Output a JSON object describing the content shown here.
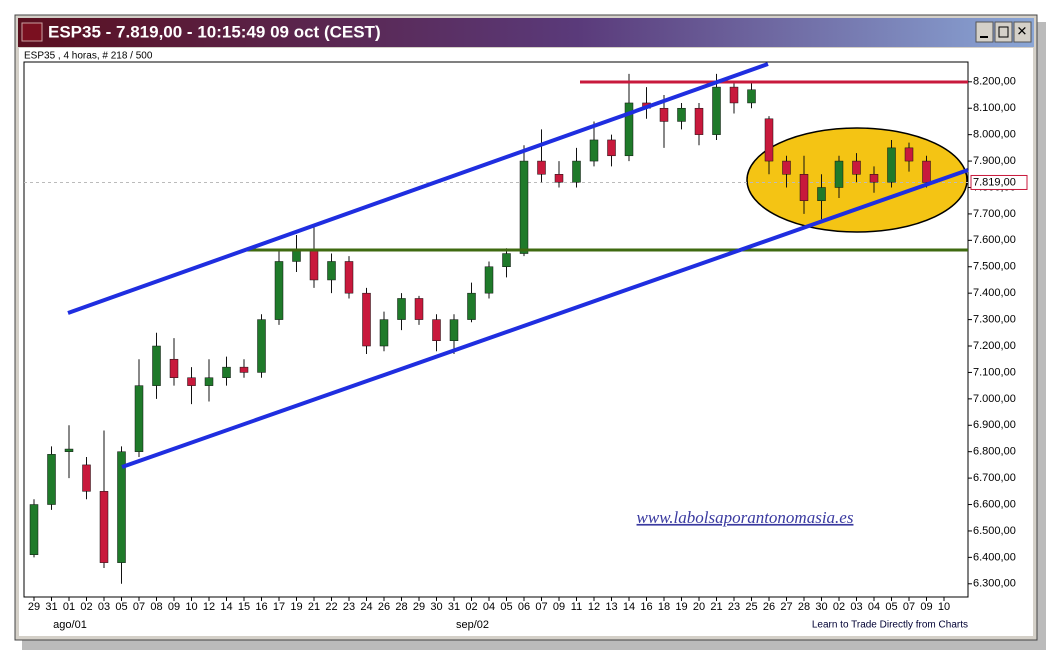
{
  "chart_data": {
    "type": "candlestick",
    "title": "ESP35 - 7.819,00 - 10:15:49  09 oct (CEST)",
    "subtitle": "ESP35 , 4 horas, # 218 / 500",
    "watermark": "www.labolsaporantonomasia.es",
    "footnote": "Learn to Trade Directly from Charts",
    "categories": [
      "29",
      "31",
      "01",
      "02",
      "03",
      "05",
      "07",
      "08",
      "09",
      "10",
      "12",
      "14",
      "15",
      "16",
      "17",
      "19",
      "21",
      "22",
      "23",
      "24",
      "26",
      "28",
      "29",
      "30",
      "31",
      "02",
      "04",
      "05",
      "06",
      "07",
      "09",
      "11",
      "12",
      "13",
      "14",
      "16",
      "18",
      "19",
      "20",
      "21",
      "23",
      "25",
      "26",
      "27",
      "28",
      "30",
      "02",
      "03",
      "04",
      "05",
      "07",
      "09",
      "10"
    ],
    "month_labels": [
      {
        "category": 2,
        "label": "ago/01"
      },
      {
        "category": 25,
        "label": "sep/02"
      }
    ],
    "open": [
      6410,
      6600,
      6800,
      6750,
      6650,
      6380,
      6800,
      7050,
      7150,
      7080,
      7050,
      7080,
      7120,
      7100,
      7300,
      7520,
      7560,
      7450,
      7520,
      7400,
      7200,
      7300,
      7380,
      7300,
      7220,
      7300,
      7400,
      7500,
      7550,
      7900,
      7850,
      7820,
      7900,
      7980,
      7920,
      8120,
      8100,
      8050,
      8100,
      8000,
      8180,
      8120,
      8060,
      7900,
      7850,
      7750,
      7800,
      7900,
      7850,
      7820,
      7950,
      7900,
      null
    ],
    "high": [
      6620,
      6820,
      6900,
      6780,
      6880,
      6820,
      7150,
      7250,
      7230,
      7120,
      7150,
      7160,
      7150,
      7320,
      7560,
      7620,
      7650,
      7550,
      7540,
      7420,
      7330,
      7400,
      7390,
      7320,
      7320,
      7440,
      7520,
      7570,
      7960,
      8020,
      7900,
      7950,
      8050,
      8000,
      8230,
      8180,
      8150,
      8120,
      8120,
      8230,
      8200,
      8200,
      8070,
      7920,
      7920,
      7850,
      7920,
      7930,
      7880,
      7980,
      7970,
      7920,
      null
    ],
    "low": [
      6400,
      6580,
      6700,
      6620,
      6360,
      6300,
      6780,
      7000,
      7050,
      6980,
      6990,
      7050,
      7080,
      7080,
      7280,
      7480,
      7420,
      7400,
      7380,
      7170,
      7180,
      7260,
      7280,
      7180,
      7170,
      7290,
      7380,
      7460,
      7540,
      7820,
      7800,
      7800,
      7880,
      7880,
      7900,
      8060,
      7950,
      8020,
      7960,
      7980,
      8080,
      8100,
      7850,
      7800,
      7700,
      7680,
      7760,
      7820,
      7780,
      7800,
      7860,
      7800,
      null
    ],
    "close": [
      6600,
      6790,
      6810,
      6650,
      6380,
      6800,
      7050,
      7200,
      7080,
      7050,
      7080,
      7120,
      7100,
      7300,
      7520,
      7560,
      7450,
      7520,
      7400,
      7200,
      7300,
      7380,
      7300,
      7220,
      7300,
      7400,
      7500,
      7550,
      7900,
      7850,
      7820,
      7900,
      7980,
      7920,
      8120,
      8100,
      8050,
      8100,
      8000,
      8180,
      8120,
      8170,
      7900,
      7850,
      7750,
      7800,
      7900,
      7850,
      7820,
      7950,
      7900,
      7819,
      null
    ],
    "up_color": "#1f7a2a",
    "down_color": "#c8193c",
    "last_price": {
      "value": 7819,
      "label": "7.819,00"
    },
    "ylim": [
      6250,
      8275
    ],
    "yticks": [
      {
        "value": 6300,
        "label": "6.300,00"
      },
      {
        "value": 6400,
        "label": "6.400,00"
      },
      {
        "value": 6500,
        "label": "6.500,00"
      },
      {
        "value": 6600,
        "label": "6.600,00"
      },
      {
        "value": 6700,
        "label": "6.700,00"
      },
      {
        "value": 6800,
        "label": "6.800,00"
      },
      {
        "value": 6900,
        "label": "6.900,00"
      },
      {
        "value": 7000,
        "label": "7.000,00"
      },
      {
        "value": 7100,
        "label": "7.100,00"
      },
      {
        "value": 7200,
        "label": "7.200,00"
      },
      {
        "value": 7300,
        "label": "7.300,00"
      },
      {
        "value": 7400,
        "label": "7.400,00"
      },
      {
        "value": 7500,
        "label": "7.500,00"
      },
      {
        "value": 7600,
        "label": "7.600,00"
      },
      {
        "value": 7700,
        "label": "7.700,00"
      },
      {
        "value": 7800,
        "label": "7.800,00"
      },
      {
        "value": 7900,
        "label": "7.900,00"
      },
      {
        "value": 8000,
        "label": "8.000,00"
      },
      {
        "value": 8100,
        "label": "8.100,00"
      },
      {
        "value": 8200,
        "label": "8.200,00"
      }
    ]
  }
}
